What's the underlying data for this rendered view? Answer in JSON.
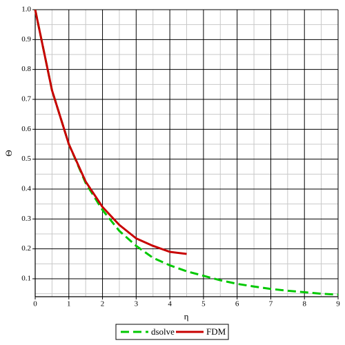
{
  "chart_data": {
    "type": "line",
    "x_label": "η",
    "y_label": "Θ",
    "xlim": [
      0,
      9
    ],
    "ylim": [
      0.04,
      1.0
    ],
    "xticks": [
      0,
      1,
      2,
      3,
      4,
      5,
      6,
      7,
      8,
      9
    ],
    "yticks": [
      0.1,
      0.2,
      0.3,
      0.4,
      0.5,
      0.6,
      0.7,
      0.8,
      0.9,
      {
        "value": 1.0,
        "label": "1.0"
      }
    ],
    "grid": true,
    "legend": "bottom",
    "series": [
      {
        "name": "dsolve",
        "color": "#00c800",
        "dashed": true,
        "x": [
          0,
          0.5,
          1,
          1.5,
          2,
          2.5,
          3,
          3.5,
          4,
          4.5,
          5,
          5.5,
          6,
          6.5,
          7,
          7.5,
          8,
          8.5,
          9
        ],
        "values": [
          1.0,
          0.73,
          0.55,
          0.42,
          0.33,
          0.26,
          0.21,
          0.17,
          0.145,
          0.125,
          0.11,
          0.095,
          0.083,
          0.074,
          0.066,
          0.06,
          0.055,
          0.05,
          0.047
        ]
      },
      {
        "name": "FDM",
        "color": "#c80000",
        "dashed": false,
        "x": [
          0,
          0.5,
          1,
          1.5,
          2,
          2.5,
          3,
          3.5,
          4,
          4.5
        ],
        "values": [
          1.0,
          0.73,
          0.55,
          0.425,
          0.34,
          0.28,
          0.235,
          0.21,
          0.19,
          0.183
        ]
      }
    ]
  }
}
